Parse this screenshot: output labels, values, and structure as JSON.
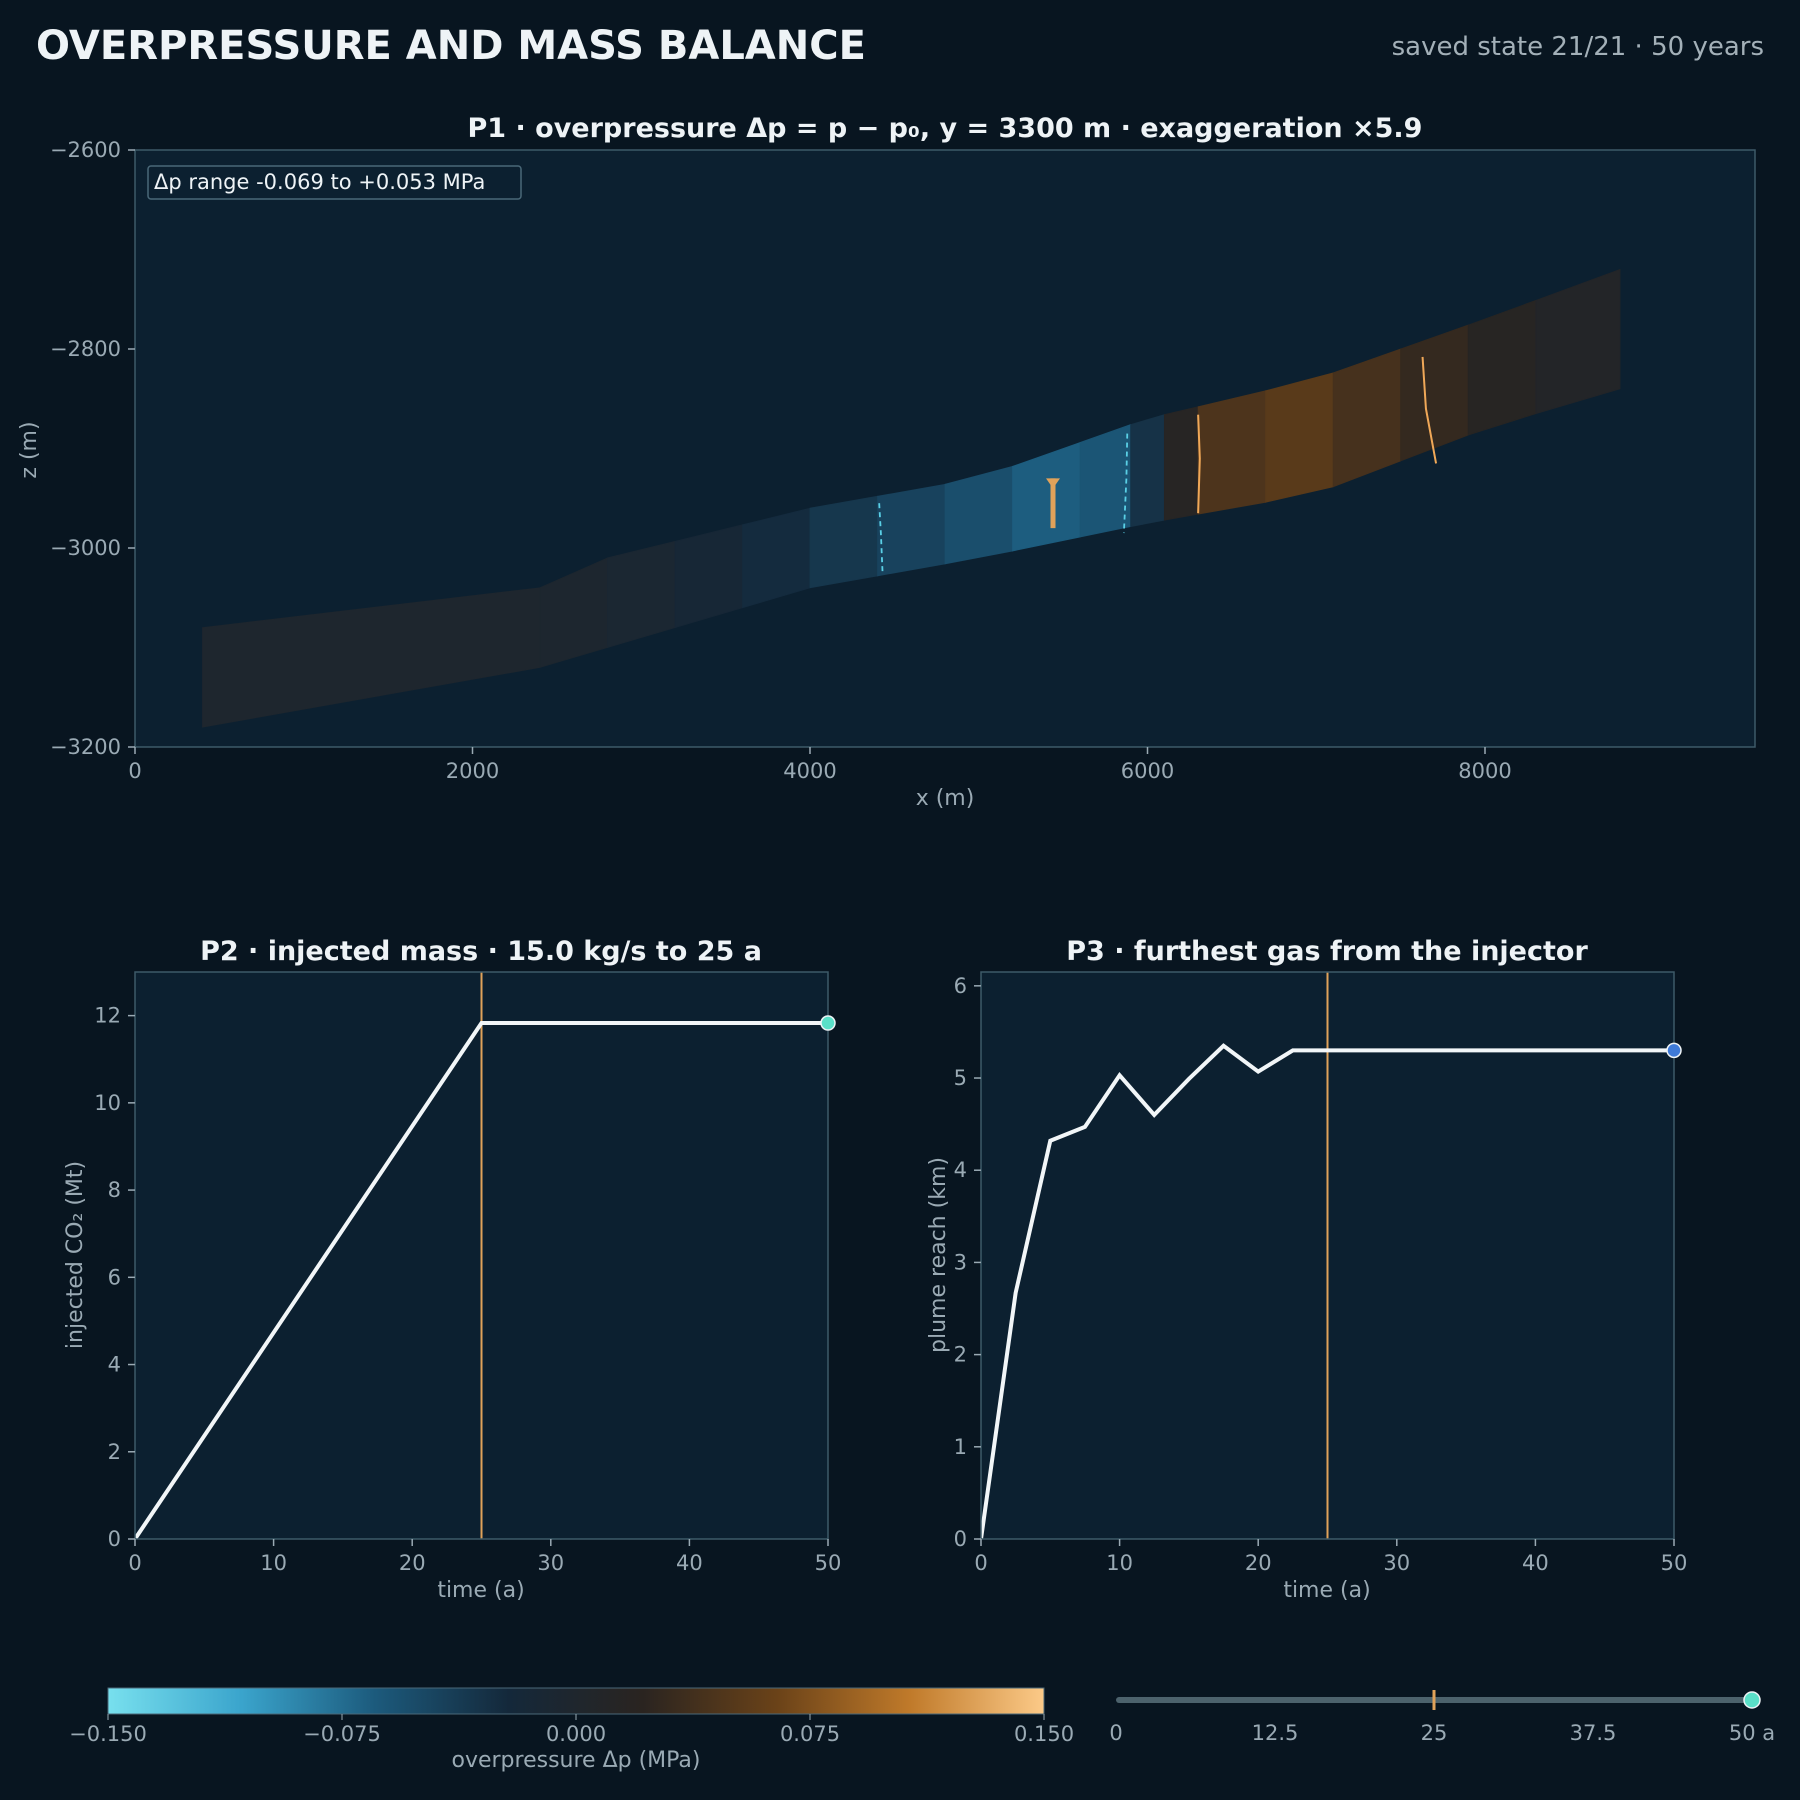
{
  "page": {
    "title": "OVERPRESSURE AND MASS BALANCE",
    "status": "saved state 21/21 · 50 years"
  },
  "colors": {
    "background": "#081520",
    "panel": "#0c2030",
    "frame": "#3d5a68",
    "injection_marker": "#e0a25a",
    "plume_contour": "#5ad0e6",
    "pressure_contour": "#f0a858",
    "line": "#f2f6f8",
    "end_marker_p2": "#5ae0c8",
    "end_marker_p3": "#3e7ad8"
  },
  "chart_data": [
    {
      "id": "P1",
      "type": "heatmap",
      "title": "P1 · overpressure Δp = p − p₀, y = 3300 m · exaggeration ×5.9",
      "xlabel": "x (m)",
      "ylabel": "z (m)",
      "xlim": [
        0,
        9600
      ],
      "ylim": [
        -3200,
        -2600
      ],
      "xticks": [
        0,
        2000,
        4000,
        6000,
        8000
      ],
      "yticks": [
        -3200,
        -3000,
        -2800,
        -2600
      ],
      "annotation": "Δp range -0.069 to +0.053 MPa",
      "colormap_range": [
        -0.15,
        0.15
      ],
      "layer": {
        "top": [
          [
            400,
            -3080
          ],
          [
            2400,
            -3040
          ],
          [
            2800,
            -3010
          ],
          [
            4000,
            -2960
          ],
          [
            5000,
            -2930
          ],
          [
            6000,
            -2870
          ],
          [
            7000,
            -2830
          ],
          [
            8000,
            -2770
          ],
          [
            8800,
            -2720
          ]
        ],
        "bottom": [
          [
            400,
            -3180
          ],
          [
            2400,
            -3120
          ],
          [
            2800,
            -3100
          ],
          [
            4000,
            -3040
          ],
          [
            5000,
            -3010
          ],
          [
            6000,
            -2975
          ],
          [
            7000,
            -2945
          ],
          [
            8000,
            -2880
          ],
          [
            8800,
            -2840
          ]
        ],
        "columns": [
          {
            "x0": 400,
            "x1": 2400,
            "dp": -0.002
          },
          {
            "x0": 2400,
            "x1": 2800,
            "dp": -0.004
          },
          {
            "x0": 2800,
            "x1": 3200,
            "dp": -0.008
          },
          {
            "x0": 3200,
            "x1": 3600,
            "dp": -0.015
          },
          {
            "x0": 3600,
            "x1": 4000,
            "dp": -0.024
          },
          {
            "x0": 4000,
            "x1": 4400,
            "dp": -0.034
          },
          {
            "x0": 4400,
            "x1": 4800,
            "dp": -0.044
          },
          {
            "x0": 4800,
            "x1": 5200,
            "dp": -0.054
          },
          {
            "x0": 5200,
            "x1": 5600,
            "dp": -0.066
          },
          {
            "x0": 5600,
            "x1": 5900,
            "dp": -0.06
          },
          {
            "x0": 5900,
            "x1": 6100,
            "dp": -0.03
          },
          {
            "x0": 6100,
            "x1": 6300,
            "dp": 0.015
          },
          {
            "x0": 6300,
            "x1": 6700,
            "dp": 0.045
          },
          {
            "x0": 6700,
            "x1": 7100,
            "dp": 0.053
          },
          {
            "x0": 7100,
            "x1": 7500,
            "dp": 0.04
          },
          {
            "x0": 7500,
            "x1": 7900,
            "dp": 0.028
          },
          {
            "x0": 7900,
            "x1": 8300,
            "dp": 0.016
          },
          {
            "x0": 8300,
            "x1": 8800,
            "dp": 0.008
          }
        ]
      },
      "injector": {
        "x": 5440,
        "z_top": -2930,
        "z_bottom": -2980
      },
      "plume_front_contours": [
        {
          "points": [
            [
              4410,
              -2955
            ],
            [
              4420,
              -2985
            ],
            [
              4430,
              -3025
            ]
          ]
        },
        {
          "points": [
            [
              5880,
              -2885
            ],
            [
              5875,
              -2930
            ],
            [
              5860,
              -2985
            ]
          ]
        }
      ],
      "pressure_contours": [
        {
          "points": [
            [
              6300,
              -2866
            ],
            [
              6310,
              -2910
            ],
            [
              6300,
              -2965
            ]
          ]
        },
        {
          "points": [
            [
              7630,
              -2808
            ],
            [
              7650,
              -2860
            ],
            [
              7710,
              -2915
            ]
          ]
        }
      ]
    },
    {
      "id": "P2",
      "type": "line",
      "title": "P2 · injected mass · 15.0 kg/s to 25 a",
      "xlabel": "time (a)",
      "ylabel": "injected CO₂ (Mt)",
      "xlim": [
        0,
        50
      ],
      "ylim": [
        0,
        13
      ],
      "xticks": [
        0,
        10,
        20,
        30,
        40,
        50
      ],
      "yticks": [
        0,
        2,
        4,
        6,
        8,
        10,
        12
      ],
      "marker_x": 25,
      "series": [
        {
          "x": [
            0,
            25,
            50
          ],
          "y": [
            0,
            11.83,
            11.83
          ]
        }
      ]
    },
    {
      "id": "P3",
      "type": "line",
      "title": "P3 · furthest gas from the injector",
      "xlabel": "time (a)",
      "ylabel": "plume reach (km)",
      "xlim": [
        0,
        50
      ],
      "ylim": [
        0,
        6.15
      ],
      "xticks": [
        0,
        10,
        20,
        30,
        40,
        50
      ],
      "yticks": [
        0,
        1,
        2,
        3,
        4,
        5,
        6
      ],
      "marker_x": 25,
      "series": [
        {
          "x": [
            0,
            2.5,
            5,
            7.5,
            10,
            12.5,
            15,
            17.5,
            20,
            22.5,
            25,
            50
          ],
          "y": [
            0,
            2.67,
            4.32,
            4.47,
            5.03,
            4.6,
            4.99,
            5.35,
            5.07,
            5.3,
            5.3,
            5.3
          ]
        }
      ]
    },
    {
      "id": "colorbar",
      "type": "heatmap",
      "label": "overpressure  Δp  (MPa)",
      "range": [
        -0.15,
        0.15
      ],
      "ticks": [
        -0.15,
        -0.075,
        0.0,
        0.075,
        0.15
      ],
      "tick_labels": [
        "−0.150",
        "−0.075",
        "0.000",
        "0.075",
        "0.150"
      ],
      "stops": [
        "#78e0ee",
        "#3aa4cc",
        "#1c5a7c",
        "#14283a",
        "#2a2420",
        "#6a4218",
        "#c07a2a",
        "#fcca88"
      ]
    }
  ],
  "timeline": {
    "ticks": [
      0,
      12.5,
      25,
      37.5,
      50
    ],
    "tick_labels": [
      "0",
      "12.5",
      "25",
      "37.5",
      "50 a"
    ],
    "current": 50,
    "marker": 25,
    "max": 50
  }
}
